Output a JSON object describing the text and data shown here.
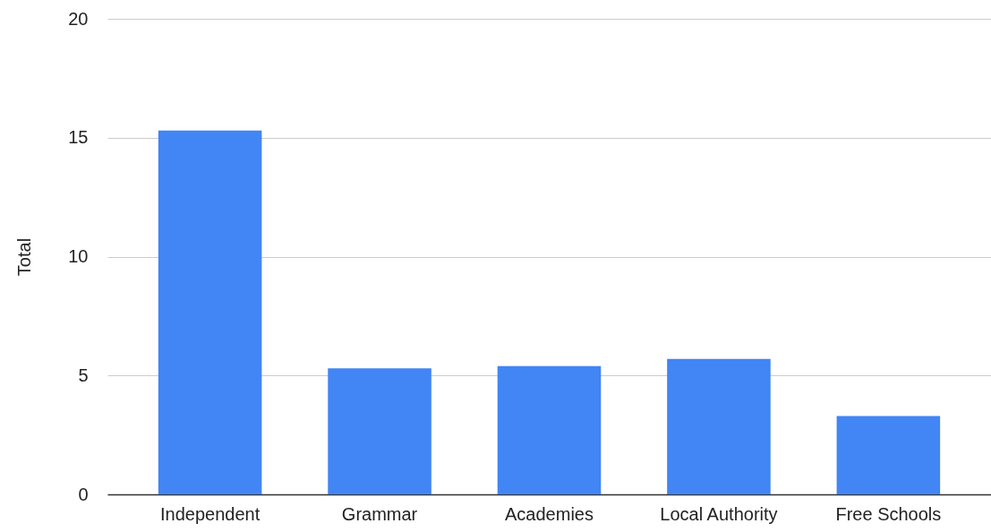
{
  "chart_data": {
    "type": "bar",
    "ylabel": "Total",
    "categories": [
      "Independent",
      "Grammar",
      "Academies",
      "Local Authority",
      "Free Schools"
    ],
    "values": [
      15.3,
      5.3,
      5.4,
      5.7,
      3.3
    ],
    "color": "#4285f4",
    "ylim": [
      0,
      20
    ],
    "yticks": [
      0,
      5,
      10,
      15,
      20
    ],
    "grid": "y"
  }
}
